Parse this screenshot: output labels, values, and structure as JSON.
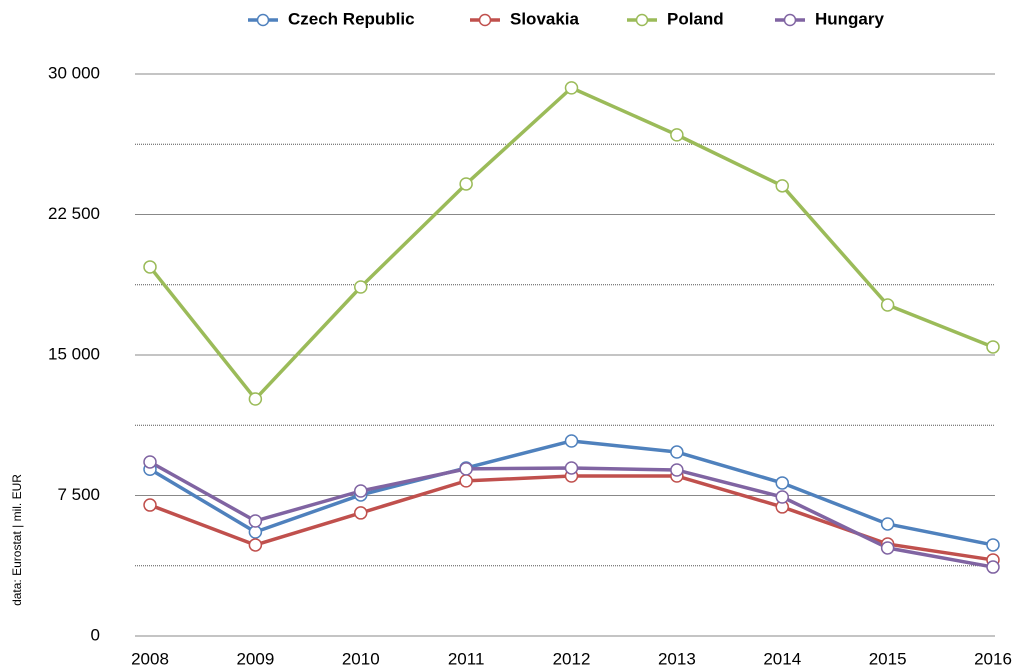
{
  "chart_data": {
    "type": "line",
    "source": "data: Eurostat | mil. EUR",
    "categories": [
      "2008",
      "2009",
      "2010",
      "2011",
      "2012",
      "2013",
      "2014",
      "2015",
      "2016"
    ],
    "series": [
      {
        "name": "Czech Republic",
        "color": "#4f81bd",
        "values": [
          8900,
          5550,
          7530,
          8970,
          10410,
          9820,
          8170,
          5980,
          4860
        ]
      },
      {
        "name": "Slovakia",
        "color": "#c0504d",
        "values": [
          6990,
          4860,
          6570,
          8280,
          8540,
          8540,
          6890,
          4910,
          4060
        ]
      },
      {
        "name": "Poland",
        "color": "#9bbb59",
        "values": [
          19700,
          12650,
          18630,
          24130,
          29260,
          26750,
          24030,
          17670,
          15430
        ]
      },
      {
        "name": "Hungary",
        "color": "#8064a2",
        "values": [
          9290,
          6140,
          7740,
          8920,
          8970,
          8860,
          7420,
          4700,
          3680
        ]
      }
    ],
    "ylim": [
      0,
      30000
    ],
    "yticks": [
      0,
      {
        "value": 7500,
        "label": "7 500"
      },
      {
        "value": 15000,
        "label": "15 000"
      },
      {
        "value": 22500,
        "label": "22 500"
      },
      {
        "value": 30000,
        "label": "30 000"
      }
    ],
    "minor_yticks": [
      3750,
      11250,
      18750,
      26250
    ],
    "grid": true,
    "legend": "top"
  }
}
